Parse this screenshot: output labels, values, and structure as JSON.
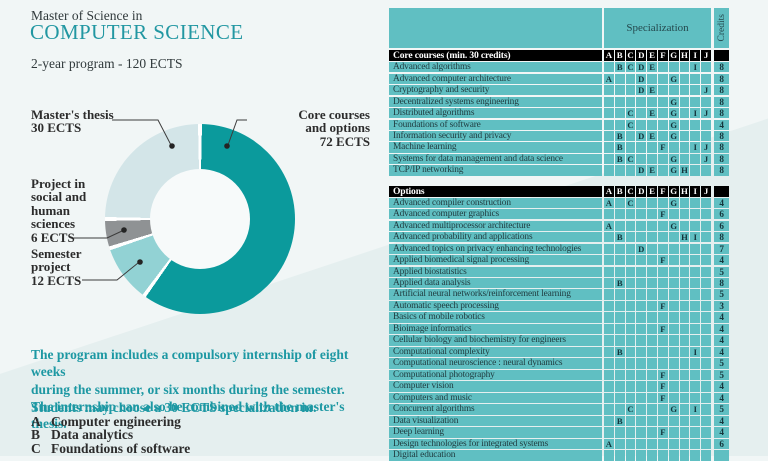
{
  "page": {
    "eyebrow": "Master of Science in",
    "title": "COMPUTER SCIENCE",
    "subtitle": "2-year program - 120 ECTS"
  },
  "colors": {
    "brand_teal": "#1d98a3",
    "table_teal": "#60bfc2",
    "header_black": "#000000",
    "donut_core": "#0b9a9c",
    "donut_semester": "#92d2d4",
    "donut_social": "#8f9294",
    "donut_thesis": "#d3e5e8"
  },
  "chart_data": {
    "type": "pie",
    "subtype": "donut",
    "unit": "ECTS",
    "total_ects": 120,
    "legend_position": "callout-labels",
    "segments": [
      {
        "label": "Core courses and options",
        "value": 72,
        "color": "#0b9a9c"
      },
      {
        "label": "Semester project",
        "value": 12,
        "color": "#92d2d4"
      },
      {
        "label": "Project in social and human sciences",
        "value": 6,
        "color": "#8f9294"
      },
      {
        "label": "Master's thesis",
        "value": 30,
        "color": "#d3e5e8"
      }
    ]
  },
  "donut_labels": {
    "masters_thesis": [
      "Master's thesis",
      "30 ECTS"
    ],
    "core_courses": [
      "Core courses",
      "and options",
      "72 ECTS"
    ],
    "project_social": [
      "Project in",
      "social and",
      "human",
      "sciences",
      "6 ECTS"
    ],
    "semester_project": [
      "Semester",
      "project",
      "12 ECTS"
    ]
  },
  "internship_note": [
    "The program includes a compulsory internship of eight weeks",
    "during the summer, or six months during the semester.",
    "The internship can also be combined with the master's thesis."
  ],
  "specialization_intro": "Students may choose a 30 ECTS specialization in:",
  "specializations": [
    {
      "key": "A",
      "label": "Computer engineering"
    },
    {
      "key": "B",
      "label": "Data analytics"
    },
    {
      "key": "C",
      "label": "Foundations of software"
    }
  ],
  "tables": {
    "spec_header": "Specialization",
    "credits_header": "Credits",
    "columns": [
      "A",
      "B",
      "C",
      "D",
      "E",
      "F",
      "G",
      "H",
      "I",
      "J"
    ],
    "core": {
      "header": "Core courses (min. 30 credits)",
      "rows": [
        {
          "name": "Advanced algorithms",
          "specs": [
            "B",
            "C",
            "D",
            "E",
            "I"
          ],
          "credits": "8"
        },
        {
          "name": "Advanced computer architecture",
          "specs": [
            "A",
            "D",
            "G"
          ],
          "credits": "8"
        },
        {
          "name": "Cryptography and security",
          "specs": [
            "D",
            "E",
            "J"
          ],
          "credits": "8"
        },
        {
          "name": "Decentralized systems engineering",
          "specs": [
            "G"
          ],
          "credits": "8"
        },
        {
          "name": "Distributed algorithms",
          "specs": [
            "C",
            "E",
            "G",
            "I",
            "J"
          ],
          "credits": "8"
        },
        {
          "name": "Foundations of software",
          "specs": [
            "C",
            "G"
          ],
          "credits": "4"
        },
        {
          "name": "Information security and privacy",
          "specs": [
            "B",
            "D",
            "E",
            "G"
          ],
          "credits": "8"
        },
        {
          "name": "Machine learning",
          "specs": [
            "B",
            "F",
            "I",
            "J"
          ],
          "credits": "8"
        },
        {
          "name": "Systems for data management and data science",
          "specs": [
            "B",
            "C",
            "G",
            "J"
          ],
          "credits": "8"
        },
        {
          "name": "TCP/IP networking",
          "specs": [
            "D",
            "E",
            "G",
            "H"
          ],
          "credits": "8"
        }
      ]
    },
    "options": {
      "header": "Options",
      "rows": [
        {
          "name": "Advanced compiler construction",
          "specs": [
            "A",
            "C",
            "G"
          ],
          "credits": "4"
        },
        {
          "name": "Advanced computer graphics",
          "specs": [
            "F"
          ],
          "credits": "6"
        },
        {
          "name": "Advanced multiprocessor architecture",
          "specs": [
            "A",
            "G"
          ],
          "credits": "6"
        },
        {
          "name": "Advanced probability and applications",
          "specs": [
            "B",
            "H",
            "I"
          ],
          "credits": "8"
        },
        {
          "name": "Advanced topics on privacy enhancing technologies",
          "specs": [
            "D"
          ],
          "credits": "7"
        },
        {
          "name": "Applied biomedical signal processing",
          "specs": [
            "F"
          ],
          "credits": "4"
        },
        {
          "name": "Applied biostatistics",
          "specs": [],
          "credits": "5"
        },
        {
          "name": "Applied data analysis",
          "specs": [
            "B"
          ],
          "credits": "8"
        },
        {
          "name": "Artificial neural networks/reinforcement learning",
          "specs": [],
          "credits": "5"
        },
        {
          "name": "Automatic speech processing",
          "specs": [
            "F"
          ],
          "credits": "3"
        },
        {
          "name": "Basics of mobile robotics",
          "specs": [],
          "credits": "4"
        },
        {
          "name": "Bioimage informatics",
          "specs": [
            "F"
          ],
          "credits": "4"
        },
        {
          "name": "Cellular biology and biochemistry for engineers",
          "specs": [],
          "credits": "4"
        },
        {
          "name": "Computational complexity",
          "specs": [
            "B",
            "I"
          ],
          "credits": "4"
        },
        {
          "name": "Computational neuroscience : neural dynamics",
          "specs": [],
          "credits": "5"
        },
        {
          "name": "Computational photography",
          "specs": [
            "F"
          ],
          "credits": "5"
        },
        {
          "name": "Computer vision",
          "specs": [
            "F"
          ],
          "credits": "4"
        },
        {
          "name": "Computers and music",
          "specs": [
            "F"
          ],
          "credits": "4"
        },
        {
          "name": "Concurrent algorithms",
          "specs": [
            "C",
            "G",
            "I"
          ],
          "credits": "5"
        },
        {
          "name": "Data visualization",
          "specs": [
            "B"
          ],
          "credits": "4"
        },
        {
          "name": "Deep learning",
          "specs": [
            "F"
          ],
          "credits": "4"
        },
        {
          "name": "Design technologies for integrated systems",
          "specs": [
            "A"
          ],
          "credits": "6"
        },
        {
          "name": "Digital education",
          "specs": [],
          "credits": ""
        }
      ]
    }
  }
}
